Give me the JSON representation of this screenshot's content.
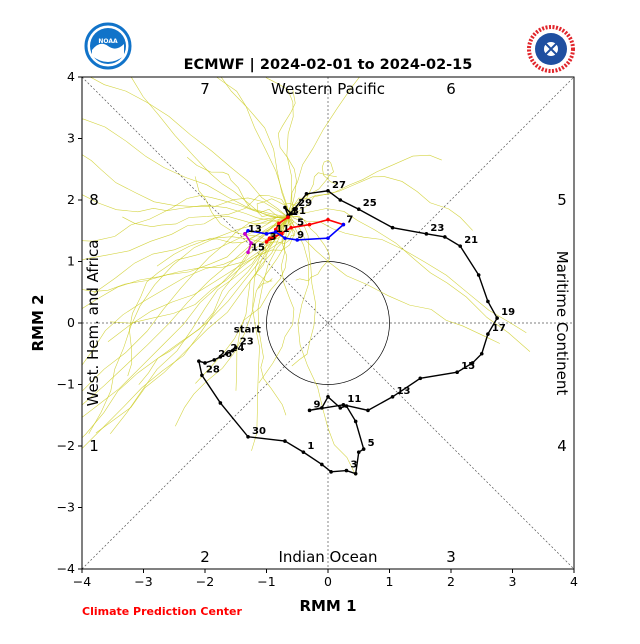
{
  "chart_data": {
    "type": "line",
    "title": "ECMWF | 2024-02-01 to 2024-02-15",
    "xlabel": "RMM 1",
    "ylabel": "RMM 2",
    "xlim": [
      -4,
      4
    ],
    "ylim": [
      -4,
      4
    ],
    "xticks": [
      "−4",
      "−3",
      "−2",
      "−1",
      "0",
      "1",
      "2",
      "3",
      "4"
    ],
    "yticks": [
      "−4",
      "−3",
      "−2",
      "−1",
      "0",
      "1",
      "2",
      "3",
      "4"
    ],
    "phases": [
      "1",
      "2",
      "3",
      "4",
      "5",
      "6",
      "7",
      "8"
    ],
    "regions": {
      "top": "Western Pacific",
      "bottom": "Indian Ocean",
      "left": "West. Hem. and Africa",
      "right": "Maritime Continent"
    },
    "start_label": "start",
    "credit": "Climate Prediction Center",
    "colors": {
      "observed": "#000000",
      "forecast_week1": "#ff0000",
      "forecast_week2": "#0000ff",
      "forecast_tail": "#cc00cc",
      "ensemble": "#cccc22",
      "noaa_blue": "#1173c9",
      "nws_red": "#e1252b"
    },
    "observed": {
      "points": [
        [
          -1.5,
          -0.4
        ],
        [
          -1.55,
          -0.45
        ],
        [
          -1.65,
          -0.5
        ],
        [
          -1.75,
          -0.55
        ],
        [
          -1.85,
          -0.6
        ],
        [
          -2.0,
          -0.65
        ],
        [
          -2.1,
          -0.62
        ],
        [
          -2.05,
          -0.85
        ],
        [
          -1.75,
          -1.3
        ],
        [
          -1.3,
          -1.85
        ],
        [
          -0.7,
          -1.92
        ],
        [
          -0.4,
          -2.1
        ],
        [
          -0.1,
          -2.3
        ],
        [
          0.05,
          -2.42
        ],
        [
          0.3,
          -2.4
        ],
        [
          0.45,
          -2.45
        ],
        [
          0.5,
          -2.1
        ],
        [
          0.58,
          -2.05
        ],
        [
          0.45,
          -1.6
        ],
        [
          0.3,
          -1.35
        ],
        [
          0.2,
          -1.38
        ],
        [
          0.0,
          -1.2
        ],
        [
          -0.1,
          -1.38
        ],
        [
          -0.3,
          -1.42
        ],
        [
          0.25,
          -1.33
        ],
        [
          0.65,
          -1.42
        ],
        [
          1.05,
          -1.2
        ],
        [
          1.5,
          -0.9
        ],
        [
          2.1,
          -0.8
        ],
        [
          2.35,
          -0.65
        ],
        [
          2.5,
          -0.5
        ],
        [
          2.6,
          -0.18
        ],
        [
          2.75,
          0.08
        ],
        [
          2.6,
          0.35
        ],
        [
          2.45,
          0.78
        ],
        [
          2.15,
          1.25
        ],
        [
          1.9,
          1.4
        ],
        [
          1.6,
          1.45
        ],
        [
          1.05,
          1.55
        ],
        [
          0.5,
          1.85
        ],
        [
          0.2,
          2.0
        ],
        [
          0.0,
          2.15
        ],
        [
          -0.35,
          2.1
        ],
        [
          -0.55,
          1.85
        ],
        [
          -0.65,
          1.75
        ],
        [
          -0.7,
          1.88
        ],
        [
          -0.6,
          1.78
        ],
        [
          -0.65,
          1.72
        ]
      ],
      "labels": [
        {
          "text": "23",
          "x": -1.5,
          "y": -0.4
        },
        {
          "text": "24",
          "x": -1.65,
          "y": -0.5
        },
        {
          "text": "26",
          "x": -1.85,
          "y": -0.6
        },
        {
          "text": "28",
          "x": -2.05,
          "y": -0.85
        },
        {
          "text": "30",
          "x": -1.3,
          "y": -1.85
        },
        {
          "text": "1",
          "x": -0.4,
          "y": -2.1
        },
        {
          "text": "3",
          "x": 0.3,
          "y": -2.4
        },
        {
          "text": "5",
          "x": 0.58,
          "y": -2.05
        },
        {
          "text": "9",
          "x": -0.3,
          "y": -1.42
        },
        {
          "text": "11",
          "x": 0.25,
          "y": -1.33
        },
        {
          "text": "13",
          "x": 1.05,
          "y": -1.2
        },
        {
          "text": "15",
          "x": 2.1,
          "y": -0.8
        },
        {
          "text": "17",
          "x": 2.6,
          "y": -0.18
        },
        {
          "text": "19",
          "x": 2.75,
          "y": 0.08
        },
        {
          "text": "21",
          "x": 2.15,
          "y": 1.25
        },
        {
          "text": "23",
          "x": 1.6,
          "y": 1.45
        },
        {
          "text": "25",
          "x": 0.5,
          "y": 1.85
        },
        {
          "text": "27",
          "x": 0.0,
          "y": 2.15
        },
        {
          "text": "29",
          "x": -0.55,
          "y": 1.85
        },
        {
          "text": "31",
          "x": -0.65,
          "y": 1.72
        }
      ]
    },
    "forecast_week1": [
      [
        -0.65,
        1.72
      ],
      [
        -0.8,
        1.62
      ],
      [
        -0.85,
        1.52
      ],
      [
        -0.75,
        1.45
      ],
      [
        -0.95,
        1.38
      ],
      [
        -1.0,
        1.32
      ],
      [
        -0.6,
        1.55
      ],
      [
        -0.3,
        1.6
      ],
      [
        0.0,
        1.68
      ],
      [
        0.25,
        1.6
      ]
    ],
    "forecast_week2": [
      [
        0.25,
        1.6
      ],
      [
        0.0,
        1.38
      ],
      [
        -0.5,
        1.35
      ],
      [
        -0.7,
        1.38
      ],
      [
        -0.85,
        1.48
      ],
      [
        -1.0,
        1.45
      ],
      [
        -1.3,
        1.5
      ],
      [
        -1.35,
        1.45
      ]
    ],
    "forecast_tail": [
      [
        -1.35,
        1.45
      ],
      [
        -1.25,
        1.3
      ],
      [
        -1.3,
        1.15
      ]
    ],
    "forecast_labels": [
      {
        "text": "1",
        "x": -0.65,
        "y": 1.72
      },
      {
        "text": "3",
        "x": -1.0,
        "y": 1.32
      },
      {
        "text": "5",
        "x": -0.55,
        "y": 1.55
      },
      {
        "text": "7",
        "x": 0.25,
        "y": 1.6
      },
      {
        "text": "9",
        "x": -0.55,
        "y": 1.35
      },
      {
        "text": "11",
        "x": -0.9,
        "y": 1.45
      },
      {
        "text": "13",
        "x": -1.35,
        "y": 1.45
      },
      {
        "text": "15",
        "x": -1.3,
        "y": 1.15
      }
    ]
  }
}
